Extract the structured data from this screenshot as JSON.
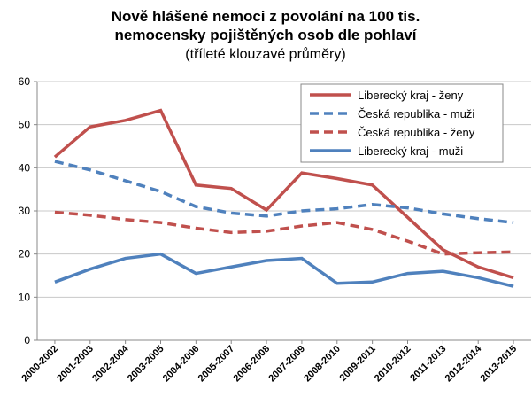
{
  "chart_data": {
    "type": "line",
    "title": [
      "Nově hlášené nemoci z povolání na 100 tis.",
      "nemocensky pojištěných osob dle pohlaví"
    ],
    "subtitle": "(tříleté klouzavé průměry)",
    "categories": [
      "2000-2002",
      "2001-2003",
      "2002-2004",
      "2003-2005",
      "2004-2006",
      "2005-2007",
      "2006-2008",
      "2007-2009",
      "2008-2010",
      "2009-2011",
      "2010-2012",
      "2011-2013",
      "2012-2014",
      "2013-2015"
    ],
    "series": [
      {
        "name": "Liberecký kraj - ženy",
        "color": "#c0504d",
        "dashed": false,
        "values": [
          42.5,
          49.5,
          51,
          53.3,
          36,
          35.2,
          30.2,
          38.8,
          37.5,
          36,
          28.5,
          21,
          17,
          14.5
        ]
      },
      {
        "name": "Česká republika - muži",
        "color": "#4f81bd",
        "dashed": true,
        "values": [
          41.5,
          39.5,
          37,
          34.5,
          31,
          29.5,
          28.8,
          30,
          30.5,
          31.5,
          30.7,
          29.3,
          28.2,
          27.3
        ]
      },
      {
        "name": "Česká republika - ženy",
        "color": "#c0504d",
        "dashed": true,
        "values": [
          29.7,
          29,
          28,
          27.3,
          26,
          25,
          25.3,
          26.5,
          27.3,
          25.7,
          23,
          20,
          20.3,
          20.5
        ]
      },
      {
        "name": "Liberecký kraj - muži",
        "color": "#4f81bd",
        "dashed": false,
        "values": [
          13.5,
          16.5,
          19,
          20,
          15.5,
          17,
          18.5,
          19,
          13.2,
          13.5,
          15.5,
          16,
          14.5,
          12.5
        ]
      }
    ],
    "ylim": [
      0,
      60
    ],
    "yticks": [
      0,
      10,
      20,
      30,
      40,
      50,
      60
    ],
    "grid": true,
    "legend": "upper right"
  }
}
